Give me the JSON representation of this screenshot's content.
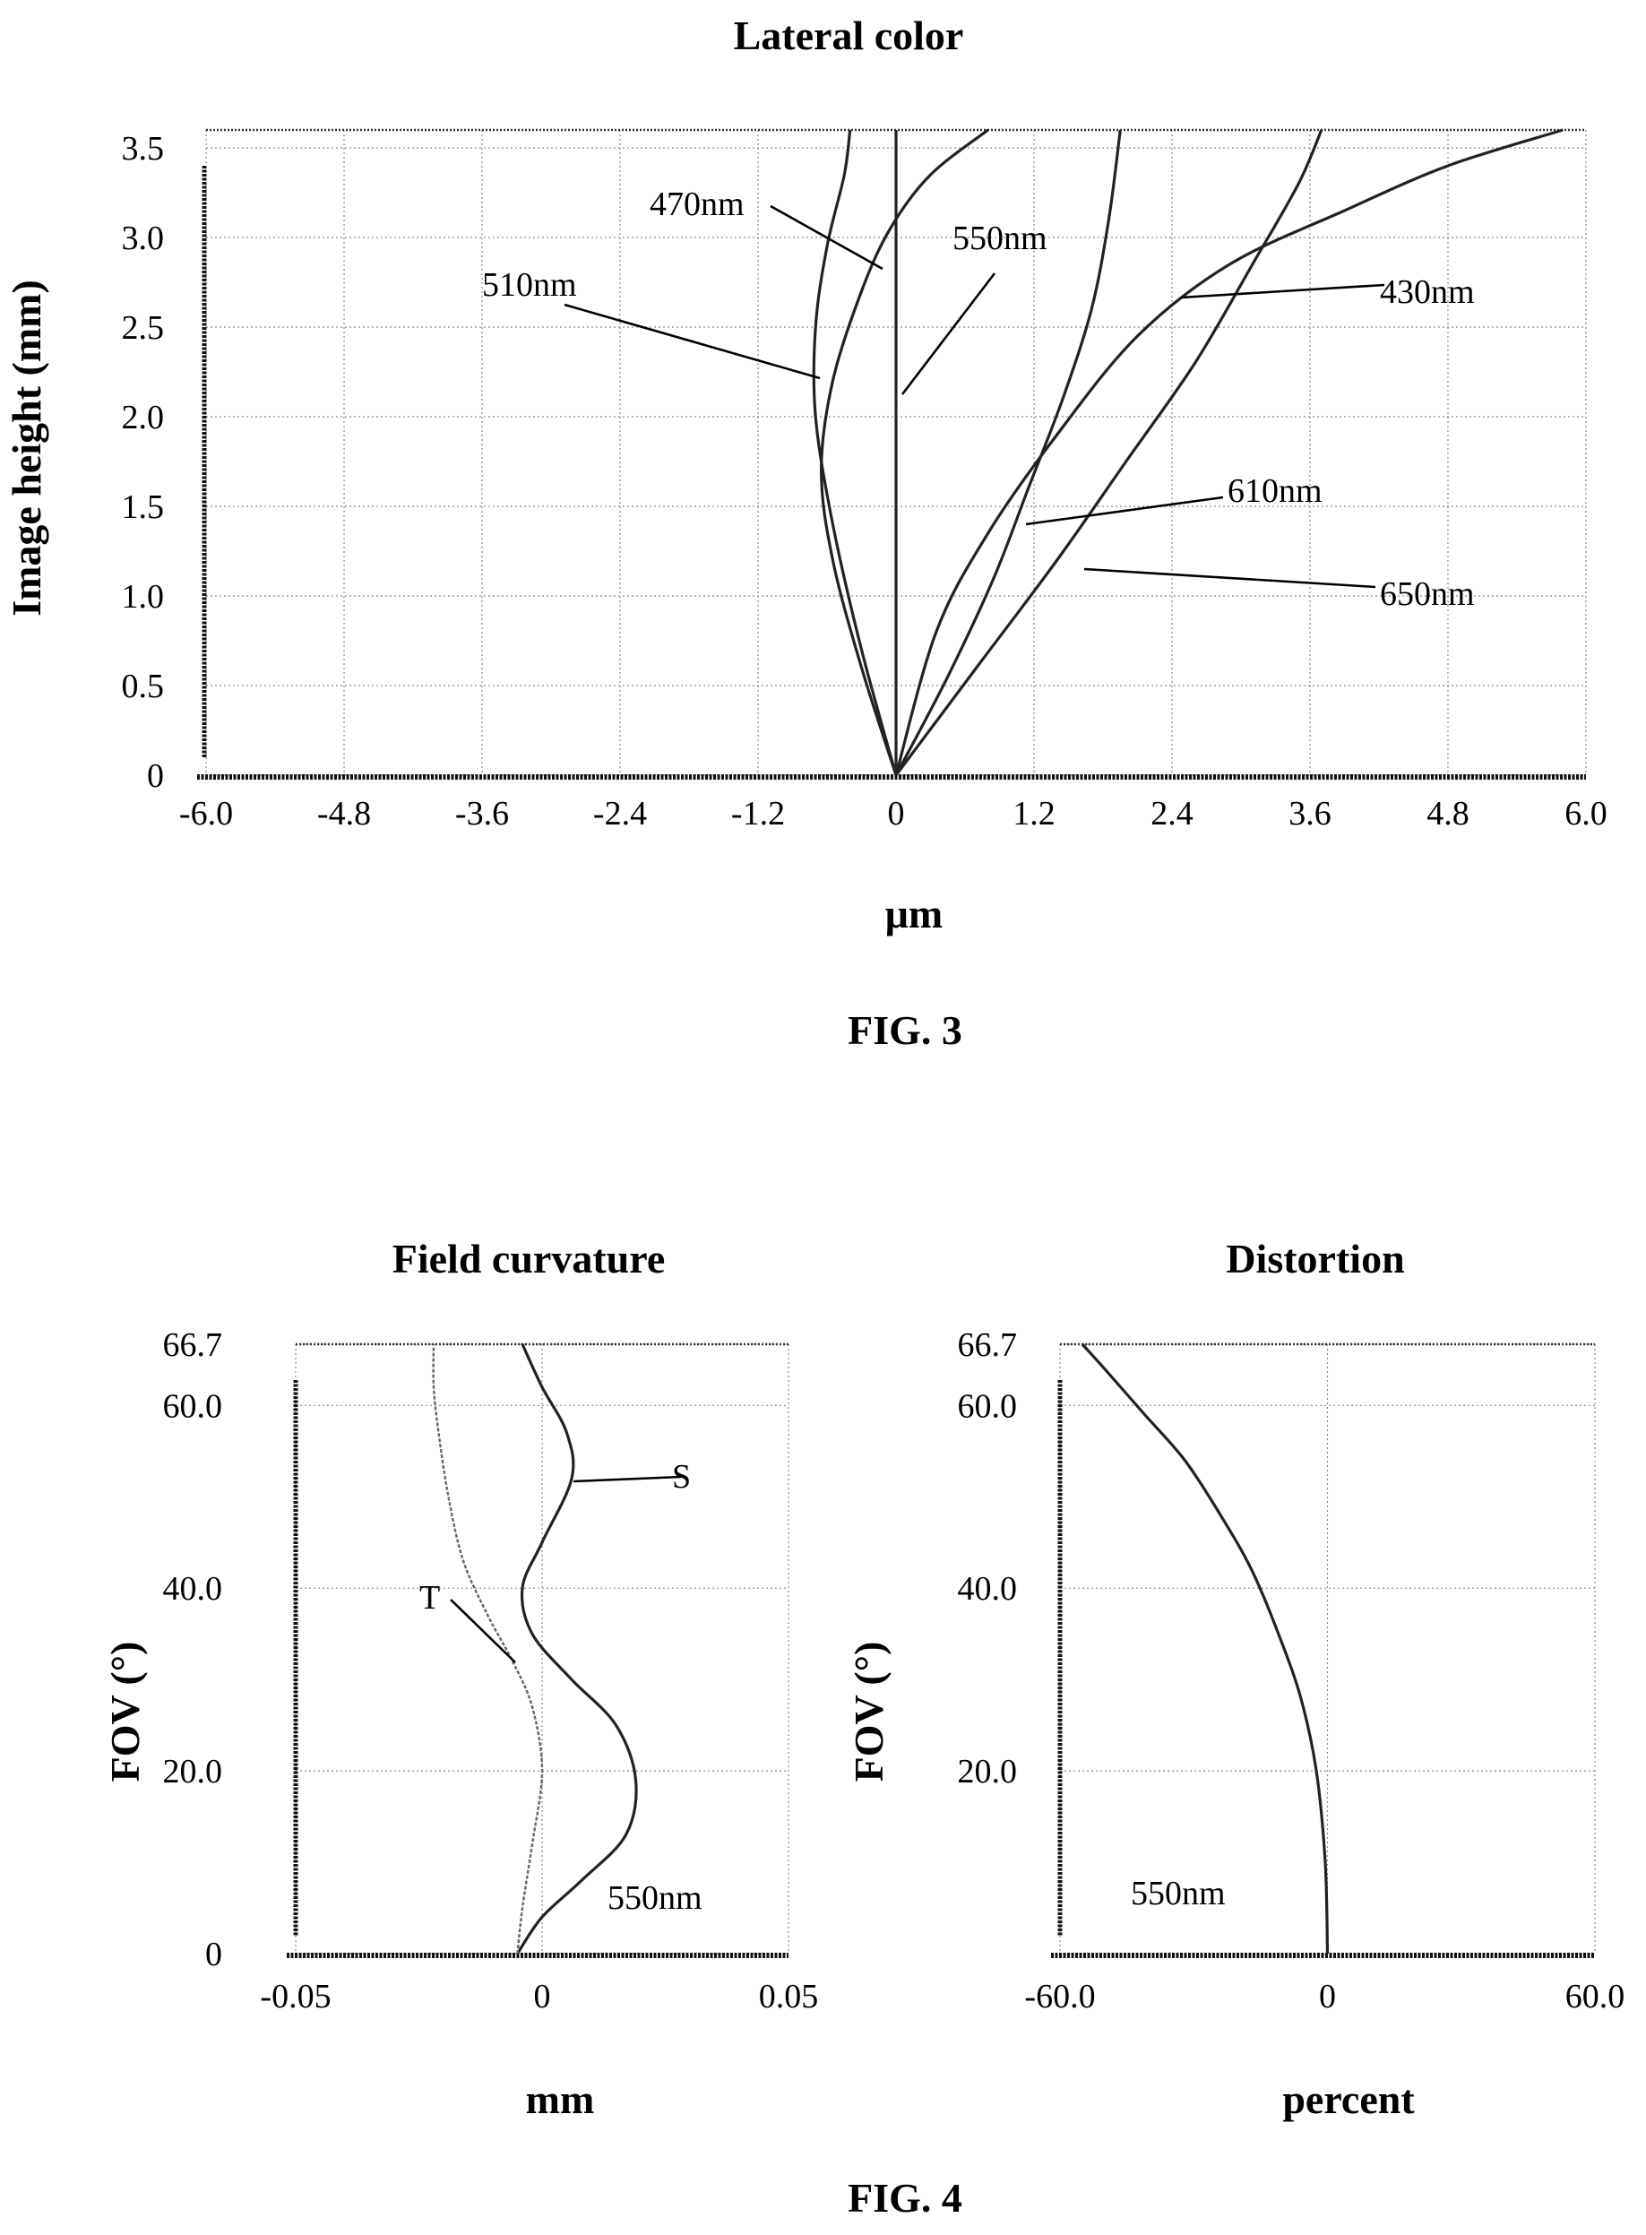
{
  "fig3_caption": "FIG. 3",
  "fig4_caption": "FIG. 4",
  "chart_data": [
    {
      "type": "line",
      "title": "Lateral color",
      "xlabel": "μm",
      "ylabel": "Image height (mm)",
      "xlim": [
        -6.0,
        6.0
      ],
      "ylim": [
        0,
        3.6
      ],
      "xticks": [
        "-6.0",
        "-4.8",
        "-3.6",
        "-2.4",
        "-1.2",
        "0",
        "1.2",
        "2.4",
        "3.6",
        "4.8",
        "6.0"
      ],
      "yticks": [
        "0",
        "0.5",
        "1.0",
        "1.5",
        "2.0",
        "2.5",
        "3.0",
        "3.5"
      ],
      "grid": true,
      "series": [
        {
          "name": "430nm",
          "x": [
            0,
            0.35,
            0.8,
            1.4,
            2.1,
            2.9,
            3.9,
            4.8,
            5.8
          ],
          "y": [
            0,
            0.8,
            1.35,
            1.9,
            2.45,
            2.85,
            3.15,
            3.4,
            3.6
          ]
        },
        {
          "name": "470nm",
          "x": [
            0,
            -0.3,
            -0.55,
            -0.65,
            -0.55,
            -0.3,
            -0.05,
            0.3,
            0.8
          ],
          "y": [
            0,
            0.6,
            1.2,
            1.7,
            2.2,
            2.7,
            3.05,
            3.35,
            3.6
          ]
        },
        {
          "name": "510nm",
          "x": [
            0,
            -0.3,
            -0.55,
            -0.7,
            -0.7,
            -0.6,
            -0.45,
            -0.4
          ],
          "y": [
            0,
            0.7,
            1.4,
            2.0,
            2.5,
            2.95,
            3.35,
            3.6
          ]
        },
        {
          "name": "550nm",
          "x": [
            0,
            0,
            0,
            0,
            0,
            0,
            0,
            0
          ],
          "y": [
            0,
            0.5,
            1.0,
            1.5,
            2.0,
            2.5,
            3.0,
            3.6
          ]
        },
        {
          "name": "610nm",
          "x": [
            0,
            0.45,
            0.85,
            1.15,
            1.45,
            1.7,
            1.85,
            1.95
          ],
          "y": [
            0,
            0.55,
            1.1,
            1.6,
            2.1,
            2.6,
            3.1,
            3.6
          ]
        },
        {
          "name": "650nm",
          "x": [
            0,
            0.7,
            1.4,
            2.0,
            2.6,
            3.1,
            3.5,
            3.7
          ],
          "y": [
            0,
            0.6,
            1.2,
            1.75,
            2.3,
            2.85,
            3.3,
            3.6
          ]
        }
      ],
      "annotations": [
        "470nm",
        "510nm",
        "550nm",
        "430nm",
        "610nm",
        "650nm"
      ]
    },
    {
      "type": "line",
      "title": "Field curvature",
      "xlabel": "mm",
      "ylabel": "FOV (°)",
      "xlim": [
        -0.05,
        0.05
      ],
      "ylim": [
        0,
        66.7
      ],
      "xticks": [
        "-0.05",
        "0",
        "0.05"
      ],
      "yticks": [
        "0",
        "20.0",
        "40.0",
        "60.0",
        "66.7"
      ],
      "grid": true,
      "series": [
        {
          "name": "T",
          "x": [
            -0.005,
            0.0,
            0.008,
            0.017,
            0.019,
            0.015,
            0.006,
            -0.002,
            -0.004,
            0.0,
            0.006,
            0.005,
            0.0,
            -0.004
          ],
          "y": [
            0,
            4,
            8,
            13,
            19,
            25,
            30,
            35,
            40,
            45,
            52,
            57,
            62,
            66.7
          ]
        },
        {
          "name": "S",
          "x": [
            -0.005,
            -0.004,
            -0.002,
            0.0,
            -0.002,
            -0.006,
            -0.011,
            -0.016,
            -0.019,
            -0.021,
            -0.022,
            -0.022
          ],
          "y": [
            0,
            5,
            12,
            20,
            27,
            32,
            37,
            43,
            50,
            57,
            62,
            66.7
          ]
        }
      ],
      "annotations": [
        "S",
        "T",
        "550nm"
      ]
    },
    {
      "type": "line",
      "title": "Distortion",
      "xlabel": "percent",
      "ylabel": "FOV (°)",
      "xlim": [
        -60.0,
        60.0
      ],
      "ylim": [
        0,
        66.7
      ],
      "xticks": [
        "-60.0",
        "0",
        "60.0"
      ],
      "yticks": [
        "20.0",
        "40.0",
        "60.0",
        "66.7"
      ],
      "grid": true,
      "series": [
        {
          "name": "550nm",
          "x": [
            0,
            -0.5,
            -2.5,
            -6,
            -11,
            -17,
            -24,
            -32,
            -41,
            -50,
            -55
          ],
          "y": [
            0,
            10,
            20,
            28,
            35,
            42,
            48,
            54,
            59,
            64,
            66.7
          ]
        }
      ],
      "annotations": [
        "550nm"
      ]
    }
  ]
}
